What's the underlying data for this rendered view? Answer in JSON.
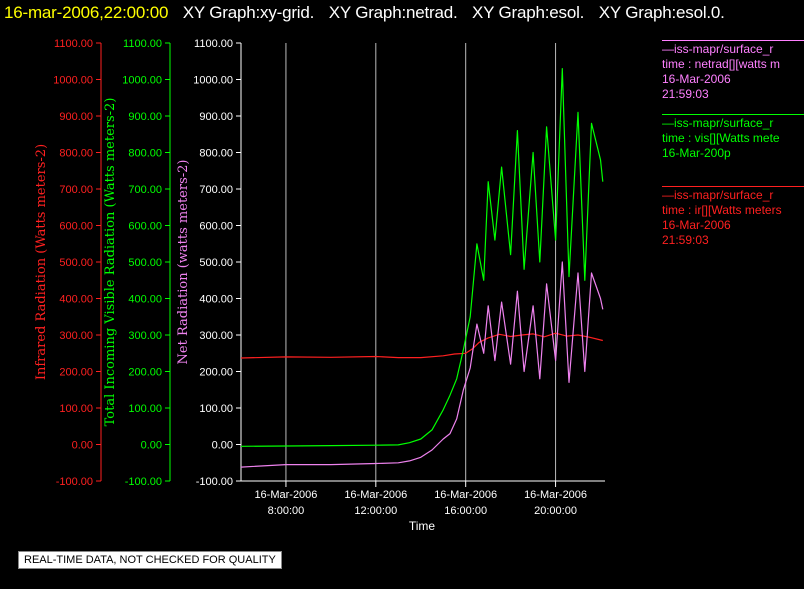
{
  "title": {
    "timestamp": "16-mar-2006,22:00:00",
    "graphs": [
      "XY Graph:xy-grid.",
      "XY Graph:netrad.",
      "XY Graph:esol.",
      "XY Graph:esol.0."
    ]
  },
  "colors": {
    "ir": "#ff2020",
    "vis": "#00ff00",
    "netrad": "#ee82ee",
    "axis": "#ffffff",
    "grid": "#bbbbbb",
    "timestamp": "#ffff00"
  },
  "legend": {
    "netrad": [
      "—iss-mapr/surface_r",
      "time : netrad[][watts m",
      "16-Mar-2006",
      "21:59:03"
    ],
    "vis": [
      "—iss-mapr/surface_r",
      "time : vis[][Watts mete",
      "16-Mar-200p"
    ],
    "ir": [
      "—iss-mapr/surface_r",
      "time : ir[][Watts meters",
      "16-Mar-2006",
      "21:59:03"
    ]
  },
  "quality_note": "REAL-TIME DATA, NOT CHECKED FOR QUALITY",
  "chart_data": {
    "type": "line",
    "xlabel": "Time",
    "x_tick_dates": [
      "16-Mar-2006",
      "16-Mar-2006",
      "16-Mar-2006",
      "16-Mar-2006"
    ],
    "x_tick_times": [
      "8:00:00",
      "12:00:00",
      "16:00:00",
      "20:00:00"
    ],
    "x_tick_hours": [
      8,
      12,
      16,
      20
    ],
    "xlim_hours": [
      6,
      22.2
    ],
    "ylim": [
      -100,
      1100
    ],
    "y_ticks": [
      -100,
      0,
      100,
      200,
      300,
      400,
      500,
      600,
      700,
      800,
      900,
      1000,
      1100
    ],
    "y_tick_labels": [
      "-100.00",
      "0.00",
      "100.00",
      "200.00",
      "300.00",
      "400.00",
      "500.00",
      "600.00",
      "700.00",
      "800.00",
      "900.00",
      "1000.00",
      "1100.00"
    ],
    "axes": [
      {
        "series": "ir",
        "label": "Infrared Radiation (Watts meters-2)"
      },
      {
        "series": "vis",
        "label": "Total Incoming Visible Radiation (Watts meters-2)"
      },
      {
        "series": "netrad",
        "label": "Net Radiation (watts meters-2)"
      }
    ],
    "grid": "vertical",
    "legend_position": "right",
    "series": [
      {
        "key": "ir",
        "x_hours": [
          6,
          8,
          10,
          12,
          13,
          14,
          15,
          15.5,
          16,
          16.3,
          16.6,
          17,
          17.5,
          18,
          18.5,
          19,
          19.5,
          20,
          20.5,
          21,
          21.5,
          22.1
        ],
        "values": [
          237,
          240,
          239,
          241,
          238,
          238,
          243,
          248,
          250,
          262,
          280,
          292,
          302,
          296,
          300,
          303,
          295,
          305,
          297,
          300,
          294,
          285
        ]
      },
      {
        "key": "vis",
        "x_hours": [
          6,
          8,
          10,
          12,
          13,
          13.5,
          14,
          14.5,
          15,
          15.3,
          15.6,
          15.9,
          16.2,
          16.5,
          16.8,
          17,
          17.3,
          17.6,
          18,
          18.3,
          18.6,
          19,
          19.3,
          19.6,
          20,
          20.3,
          20.6,
          21,
          21.3,
          21.6,
          22,
          22.1
        ],
        "values": [
          -5,
          -4,
          -3,
          -2,
          -1,
          5,
          15,
          40,
          95,
          135,
          180,
          260,
          350,
          550,
          450,
          720,
          560,
          760,
          520,
          860,
          480,
          800,
          500,
          870,
          560,
          1030,
          460,
          910,
          450,
          880,
          780,
          720
        ]
      },
      {
        "key": "netrad",
        "x_hours": [
          6,
          8,
          10,
          12,
          13,
          13.5,
          14,
          14.5,
          15,
          15.3,
          15.6,
          15.9,
          16.2,
          16.5,
          16.8,
          17,
          17.3,
          17.6,
          18,
          18.3,
          18.6,
          19,
          19.3,
          19.6,
          20,
          20.3,
          20.6,
          21,
          21.3,
          21.6,
          22,
          22.1
        ],
        "values": [
          -62,
          -55,
          -55,
          -52,
          -50,
          -45,
          -35,
          -15,
          15,
          30,
          70,
          150,
          210,
          330,
          250,
          380,
          230,
          390,
          220,
          420,
          200,
          380,
          180,
          440,
          230,
          500,
          170,
          470,
          200,
          470,
          400,
          370
        ]
      }
    ]
  }
}
